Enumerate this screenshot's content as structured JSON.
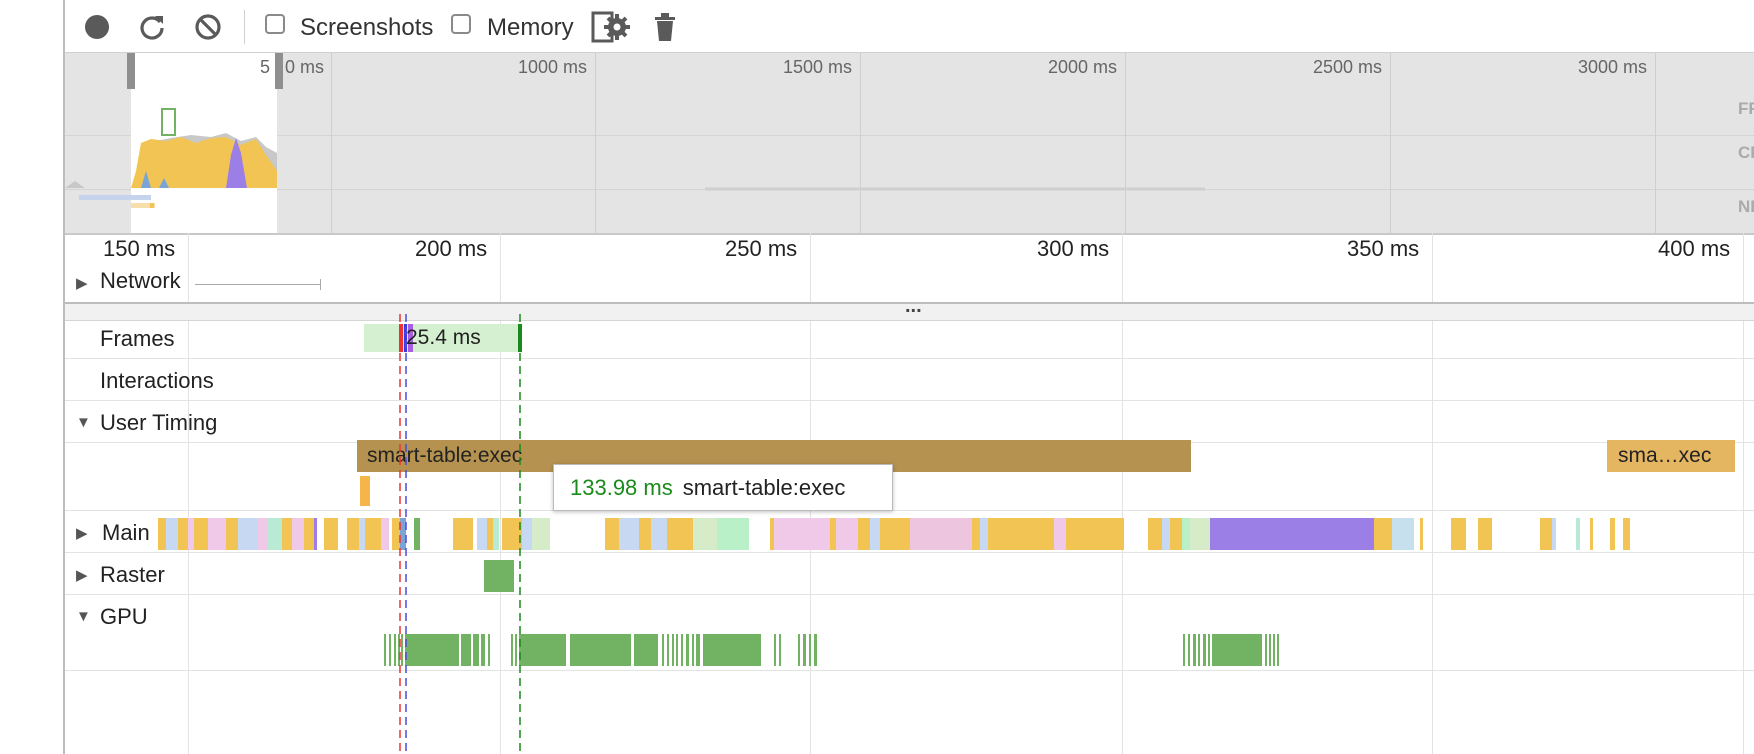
{
  "toolbar": {
    "record_icon": "record-icon",
    "reload_icon": "reload-icon",
    "clear_icon": "clear-icon",
    "screenshots_label": "Screenshots",
    "screenshots_checked": false,
    "memory_label": "Memory",
    "memory_checked": false,
    "settings_icon": "capture-settings-icon",
    "trash_icon": "trash-icon"
  },
  "overview": {
    "ticks": [
      "5",
      "0 ms",
      "1000 ms",
      "1500 ms",
      "2000 ms",
      "2500 ms",
      "3000 ms"
    ],
    "rows": [
      "FP",
      "CP",
      "NE"
    ]
  },
  "ruler": {
    "ticks": [
      "150 ms",
      "200 ms",
      "250 ms",
      "300 ms",
      "350 ms",
      "400 ms"
    ]
  },
  "tracks": {
    "network": "Network",
    "frames": "Frames",
    "frame_duration": "25.4 ms",
    "interactions": "Interactions",
    "user_timing": "User Timing",
    "main": "Main",
    "raster": "Raster",
    "gpu": "GPU"
  },
  "user_timing": {
    "bar1_label": "smart-table:exec",
    "bar2_label": "sma…xec"
  },
  "divider_dots": "...",
  "tooltip": {
    "duration": "133.98 ms",
    "name": "smart-table:exec"
  },
  "colors": {
    "scripting": "#f1c453",
    "rendering": "#9b7fe6",
    "painting": "#71b363",
    "user_timing": "#b5924f",
    "frame_bg": "#d5f0d0",
    "duration_green": "#1a8a1a"
  }
}
